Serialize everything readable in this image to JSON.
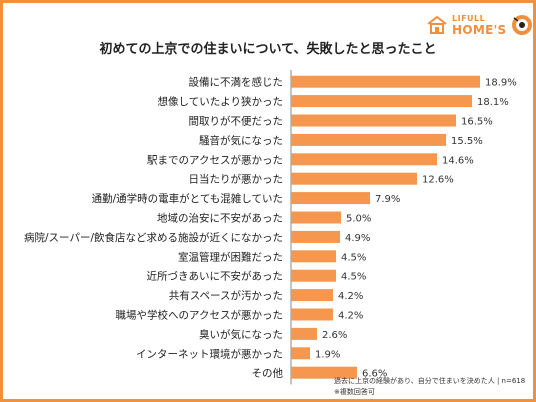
{
  "brand": {
    "top": "LIFULL",
    "main": "HOME'S",
    "color": "#f08f3e"
  },
  "chart_data": {
    "type": "bar",
    "orientation": "horizontal",
    "title": "初めての上京での住まいについて、失敗したと思ったこと",
    "categories": [
      "設備に不満を感じた",
      "想像していたより狭かった",
      "間取りが不便だった",
      "騒音が気になった",
      "駅までのアクセスが悪かった",
      "日当たりが悪かった",
      "通勤/通学時の電車がとても混雑していた",
      "地域の治安に不安があった",
      "病院/スーパー/飲食店など求める施設が近くになかった",
      "室温管理が困難だった",
      "近所づきあいに不安があった",
      "共有スペースが汚かった",
      "職場や学校へのアクセスが悪かった",
      "臭いが気になった",
      "インターネット環境が悪かった",
      "その他"
    ],
    "values": [
      18.9,
      18.1,
      16.5,
      15.5,
      14.6,
      12.6,
      7.9,
      5.0,
      4.9,
      4.5,
      4.5,
      4.2,
      4.2,
      2.6,
      1.9,
      6.6
    ],
    "value_labels": [
      "18.9%",
      "18.1%",
      "16.5%",
      "15.5%",
      "14.6%",
      "12.6%",
      "7.9%",
      "5.0%",
      "4.9%",
      "4.5%",
      "4.5%",
      "4.2%",
      "4.2%",
      "2.6%",
      "1.9%",
      "6.6%"
    ],
    "bar_color": "#f5974f",
    "axis_color": "#888888",
    "xlim": [
      0,
      20
    ],
    "grid": false,
    "legend": "none"
  },
  "footnotes": [
    "過去に上京の経験があり、自分で住まいを決めた人 | n=618",
    "※複数回答可"
  ]
}
